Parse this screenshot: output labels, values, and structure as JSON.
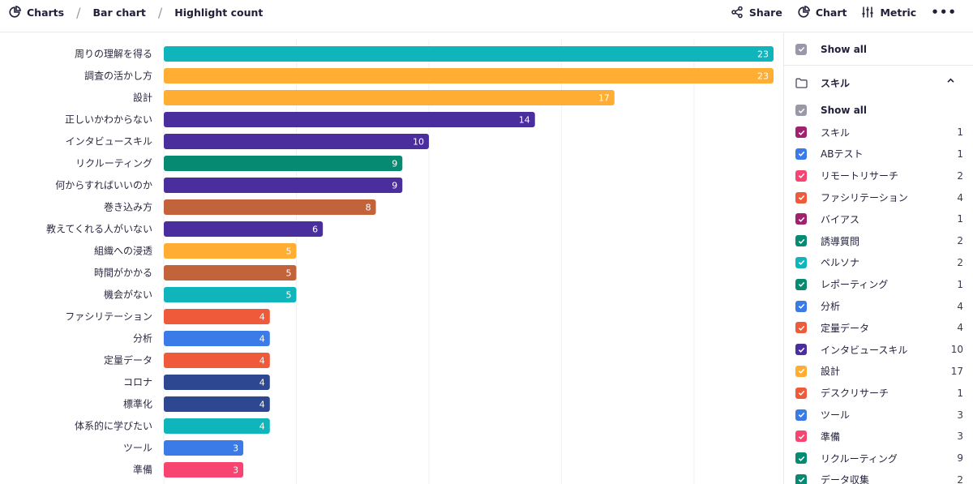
{
  "breadcrumb": {
    "items": [
      {
        "label": "Charts",
        "icon": "pie-chart-icon"
      },
      {
        "label": "Bar chart"
      },
      {
        "label": "Highlight count"
      }
    ]
  },
  "toolbar": {
    "share_label": "Share",
    "chart_label": "Chart",
    "metric_label": "Metric",
    "more_icon": "more-horizontal-icon"
  },
  "colors": {
    "teal": "#0fb5ba",
    "orange": "#ffad33",
    "purple": "#4a2e9e",
    "green": "#068a72",
    "brown": "#c2633a",
    "coral": "#ef5b3a",
    "blue": "#3b7be8",
    "navy": "#2d4890",
    "pink": "#f74470",
    "magenta": "#a0226f",
    "gray": "#9a98a8"
  },
  "chart_data": {
    "type": "bar",
    "orientation": "horizontal",
    "categories": [
      "周りの理解を得る",
      "調査の活かし方",
      "設計",
      "正しいかわからない",
      "インタビュースキル",
      "リクルーティング",
      "何からすればいいのか",
      "巻き込み方",
      "教えてくれる人がいない",
      "組織への浸透",
      "時間がかかる",
      "機会がない",
      "ファシリテーション",
      "分析",
      "定量データ",
      "コロナ",
      "標準化",
      "体系的に学びたい",
      "ツール",
      "準備"
    ],
    "values": [
      23,
      23,
      17,
      14,
      10,
      9,
      9,
      8,
      6,
      5,
      5,
      5,
      4,
      4,
      4,
      4,
      4,
      4,
      3,
      3
    ],
    "bar_colors": [
      "#0fb5ba",
      "#ffad33",
      "#ffad33",
      "#4a2e9e",
      "#4a2e9e",
      "#068a72",
      "#4a2e9e",
      "#c2633a",
      "#4a2e9e",
      "#ffad33",
      "#c2633a",
      "#0fb5ba",
      "#ef5b3a",
      "#3b7be8",
      "#ef5b3a",
      "#2d4890",
      "#2d4890",
      "#0fb5ba",
      "#3b7be8",
      "#f74470"
    ],
    "xlim": [
      0,
      23
    ],
    "grid": true,
    "data_labels": true
  },
  "filter_panel": {
    "show_all_label": "Show all",
    "group": {
      "label": "スキル",
      "show_all_label": "Show all",
      "items": [
        {
          "label": "スキル",
          "count": "1",
          "color": "#a0226f"
        },
        {
          "label": "ABテスト",
          "count": "1",
          "color": "#3b7be8"
        },
        {
          "label": "リモートリサーチ",
          "count": "2",
          "color": "#f74470"
        },
        {
          "label": "ファシリテーション",
          "count": "4",
          "color": "#ef5b3a"
        },
        {
          "label": "バイアス",
          "count": "1",
          "color": "#a0226f"
        },
        {
          "label": "誘導質問",
          "count": "2",
          "color": "#068a72"
        },
        {
          "label": "ペルソナ",
          "count": "2",
          "color": "#0fb5ba"
        },
        {
          "label": "レポーティング",
          "count": "1",
          "color": "#068a72"
        },
        {
          "label": "分析",
          "count": "4",
          "color": "#3b7be8"
        },
        {
          "label": "定量データ",
          "count": "4",
          "color": "#ef5b3a"
        },
        {
          "label": "インタビュースキル",
          "count": "10",
          "color": "#4a2e9e"
        },
        {
          "label": "設計",
          "count": "17",
          "color": "#ffad33"
        },
        {
          "label": "デスクリサーチ",
          "count": "1",
          "color": "#ef5b3a"
        },
        {
          "label": "ツール",
          "count": "3",
          "color": "#3b7be8"
        },
        {
          "label": "準備",
          "count": "3",
          "color": "#f74470"
        },
        {
          "label": "リクルーティング",
          "count": "9",
          "color": "#068a72"
        },
        {
          "label": "データ収集",
          "count": "2",
          "color": "#068a72"
        }
      ]
    }
  }
}
